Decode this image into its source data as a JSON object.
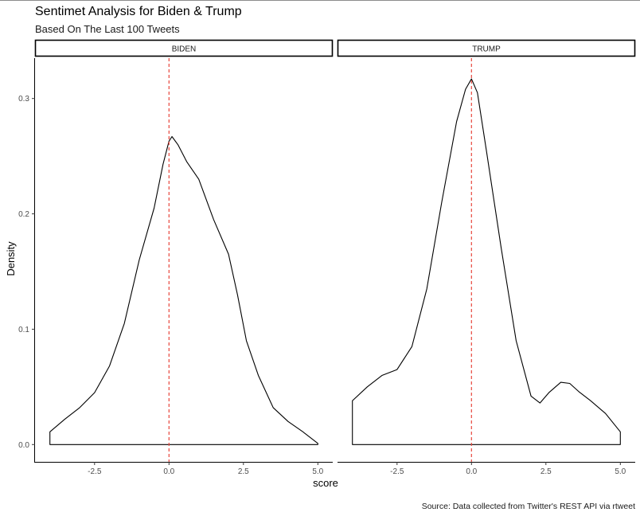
{
  "header": {
    "title": "Sentimet Analysis for Biden & Trump",
    "subtitle": "Based On The Last 100 Tweets"
  },
  "caption": "Source: Data collected from Twitter's REST API via rtweet",
  "colors": {
    "density_line": "#000000",
    "reference_line": "#e8473c",
    "strip_border": "#000000"
  },
  "chart_data": {
    "type": "line",
    "subtype": "density",
    "xlabel": "score",
    "ylabel": "Density",
    "xlim": [
      -4.5,
      5.5
    ],
    "ylim": [
      -0.015,
      0.335
    ],
    "x_ticks": [
      -2.5,
      0.0,
      2.5,
      5.0
    ],
    "x_tick_labels": [
      "-2.5",
      "0.0",
      "2.5",
      "5.0"
    ],
    "y_ticks": [
      0.0,
      0.1,
      0.2,
      0.3
    ],
    "y_tick_labels": [
      "0.0",
      "0.1",
      "0.2",
      "0.3"
    ],
    "reference_line": {
      "x": 0,
      "style": "dashed",
      "color": "#e8473c"
    },
    "grid": false,
    "facets": [
      {
        "label": "BIDEN",
        "x": [
          -4.0,
          -3.5,
          -3.0,
          -2.5,
          -2.0,
          -1.5,
          -1.0,
          -0.5,
          -0.2,
          0.0,
          0.1,
          0.3,
          0.6,
          1.0,
          1.5,
          2.0,
          2.3,
          2.6,
          3.0,
          3.5,
          4.0,
          4.5,
          5.0
        ],
        "y": [
          0.011,
          0.022,
          0.032,
          0.045,
          0.068,
          0.105,
          0.16,
          0.205,
          0.243,
          0.263,
          0.267,
          0.26,
          0.245,
          0.23,
          0.195,
          0.165,
          0.13,
          0.09,
          0.06,
          0.032,
          0.02,
          0.011,
          0.001
        ]
      },
      {
        "label": "TRUMP",
        "x": [
          -4.0,
          -3.5,
          -3.0,
          -2.5,
          -2.0,
          -1.5,
          -1.0,
          -0.5,
          -0.2,
          0.0,
          0.2,
          0.5,
          1.0,
          1.5,
          2.0,
          2.3,
          2.6,
          3.0,
          3.3,
          3.6,
          4.0,
          4.5,
          5.0
        ],
        "y": [
          0.038,
          0.05,
          0.06,
          0.065,
          0.085,
          0.135,
          0.21,
          0.28,
          0.308,
          0.317,
          0.305,
          0.255,
          0.17,
          0.09,
          0.042,
          0.036,
          0.045,
          0.054,
          0.053,
          0.046,
          0.038,
          0.027,
          0.011
        ]
      }
    ]
  }
}
